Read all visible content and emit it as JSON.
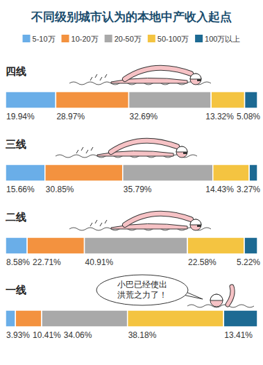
{
  "chart_data": {
    "type": "bar",
    "orientation": "horizontal",
    "stacked": true,
    "title": "不同级别城市认为的本地中产收入起点",
    "categories": [
      "四线",
      "三线",
      "二线",
      "一线"
    ],
    "series": [
      {
        "name": "5-10万",
        "color": "#6aaee8",
        "values": [
          19.94,
          15.66,
          8.58,
          3.93
        ],
        "value_labels": [
          "19.94%",
          "15.66%",
          "8.58%",
          "3.93%"
        ]
      },
      {
        "name": "10-20万",
        "color": "#f3923f",
        "values": [
          28.97,
          30.85,
          22.71,
          10.41
        ],
        "value_labels": [
          "28.97%",
          "30.85%",
          "22.71%",
          "10.41%"
        ]
      },
      {
        "name": "20-50万",
        "color": "#a9a9a9",
        "values": [
          32.69,
          35.79,
          40.91,
          34.06
        ],
        "value_labels": [
          "32.69%",
          "35.79%",
          "40.91%",
          "34.06%"
        ]
      },
      {
        "name": "50-100万",
        "color": "#f4c441",
        "values": [
          13.32,
          14.43,
          22.58,
          38.18
        ],
        "value_labels": [
          "13.32%",
          "14.43%",
          "22.58%",
          "38.18%"
        ]
      },
      {
        "name": "100万以上",
        "color": "#1d6a93",
        "values": [
          5.08,
          3.27,
          5.22,
          13.41
        ],
        "value_labels": [
          "5.08%",
          "3.27%",
          "5.22%",
          "13.41%"
        ]
      }
    ],
    "xlim": [
      0,
      100
    ],
    "tick_labels": false,
    "data_labels": true,
    "legend": "top",
    "annotation": [
      "小巴已经使出",
      "洪荒之力了！"
    ]
  }
}
